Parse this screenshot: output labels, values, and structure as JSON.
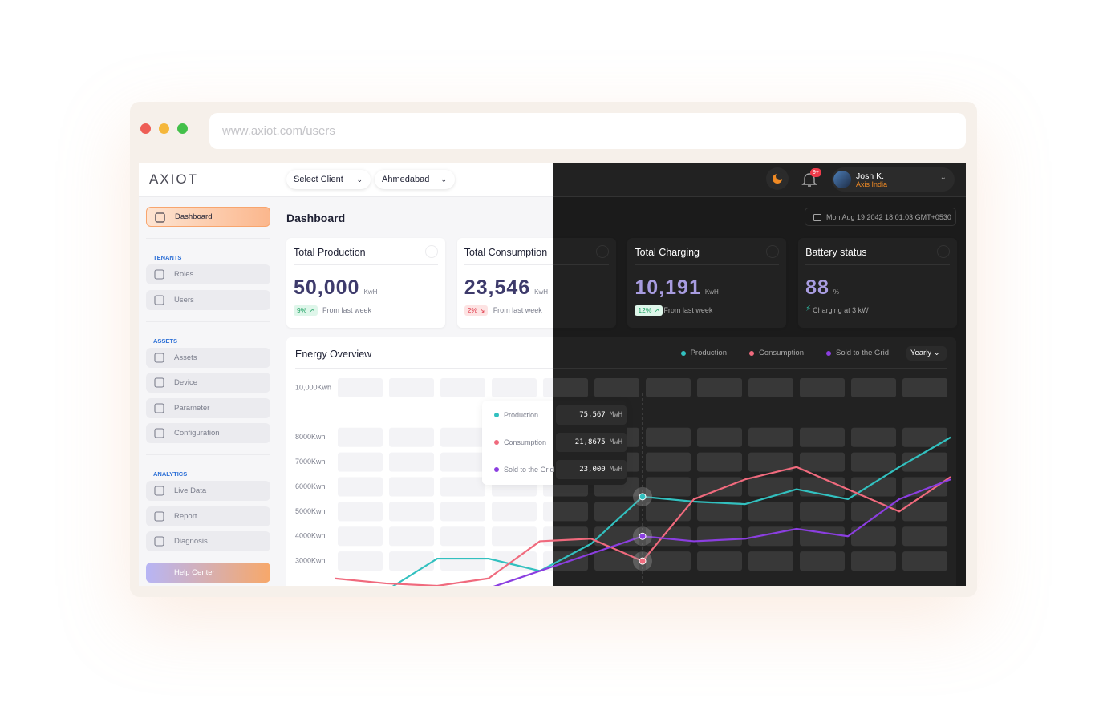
{
  "browser": {
    "url": "www.axiot.com/users"
  },
  "topbar": {
    "logo": "AXIOT",
    "client_select": "Select Client",
    "location_select": "Ahmedabad",
    "notification_badge": "9+",
    "user": {
      "name": "Josh K.",
      "company": "Axis India"
    }
  },
  "sidebar": {
    "sections": [
      {
        "items": [
          "Dashboard"
        ]
      },
      {
        "heading": "TENANTS",
        "items": [
          "Roles",
          "Users"
        ]
      },
      {
        "heading": "ASSETS",
        "items": [
          "Assets",
          "Device",
          "Parameter",
          "Configuration"
        ]
      },
      {
        "heading": "ANALYTICS",
        "items": [
          "Live Data",
          "Report",
          "Diagnosis"
        ]
      }
    ],
    "help": "Help Center"
  },
  "main": {
    "title": "Dashboard",
    "datetime": "Mon Aug 19 2042 18:01:03 GMT+0530"
  },
  "cards": [
    {
      "title": "Total Production",
      "value": "50,000",
      "unit": "KwH",
      "change": "9%",
      "trend": "up",
      "note": "From last week"
    },
    {
      "title": "Total Consumption",
      "value": "23,546",
      "unit": "KwH",
      "change": "2%",
      "trend": "down",
      "note": "From last week"
    },
    {
      "title": "Total Charging",
      "value": "10,191",
      "unit": "KwH",
      "change": "12%",
      "trend": "up",
      "note": "From last week"
    },
    {
      "title": "Battery status",
      "value": "88",
      "unit": "%",
      "note": "Charging at 3 kW"
    }
  ],
  "energy_overview": {
    "title": "Energy Overview",
    "period": "Yearly",
    "chart": {
      "type": "line",
      "categories": [
        null,
        null,
        null,
        null,
        null,
        null,
        null,
        null,
        null,
        null,
        null,
        null,
        null
      ],
      "ylim": [
        2000,
        10000
      ],
      "yticks": [
        {
          "value": 10000,
          "label": "10,000Kwh"
        },
        {
          "value": 8000,
          "label": "8000Kwh"
        },
        {
          "value": 7000,
          "label": "7000Kwh"
        },
        {
          "value": 6000,
          "label": "6000Kwh"
        },
        {
          "value": 5000,
          "label": "5000Kwh"
        },
        {
          "value": 4000,
          "label": "4000Kwh"
        },
        {
          "value": 3000,
          "label": "3000Kwh"
        }
      ],
      "series": [
        {
          "name": "Production",
          "color": "#32c0bf",
          "values": [
            null,
            1800,
            3100,
            3100,
            2600,
            3700,
            5600,
            5400,
            5300,
            5900,
            5500,
            6800,
            8000
          ]
        },
        {
          "name": "Consumption",
          "color": "#f06a7d",
          "values": [
            2300,
            2100,
            2000,
            2300,
            3800,
            3900,
            3000,
            5500,
            6300,
            6800,
            5900,
            5000,
            6400
          ]
        },
        {
          "name": "Sold to the Grid",
          "color": "#8b3ee0",
          "values": [
            null,
            null,
            null,
            1900,
            2600,
            3300,
            4000,
            3800,
            3900,
            4300,
            4000,
            5500,
            6300
          ]
        }
      ]
    },
    "tooltip": [
      {
        "label": "Production",
        "value": "75,567",
        "unit": "MwH"
      },
      {
        "label": "Consumption",
        "value": "21,8675",
        "unit": "MwH"
      },
      {
        "label": "Sold to the Grid",
        "value": "23,000",
        "unit": "MwH"
      }
    ]
  }
}
